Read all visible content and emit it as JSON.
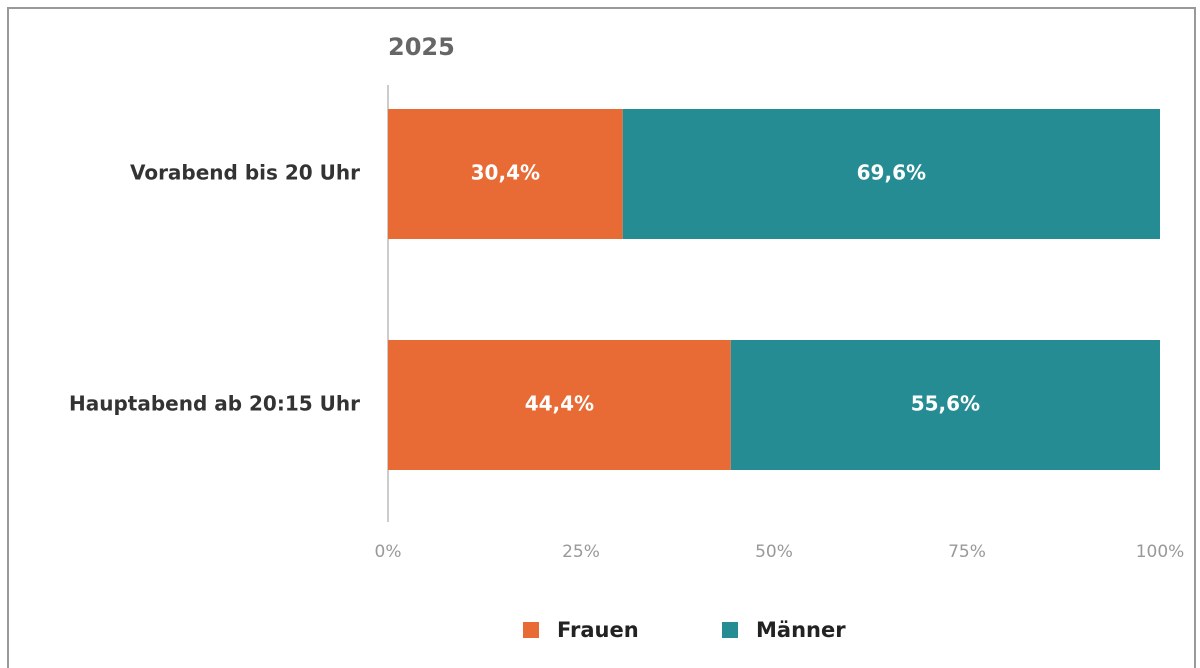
{
  "chart_data": {
    "type": "bar",
    "orientation": "horizontal",
    "stacked": true,
    "title": "2025",
    "categories": [
      "Vorabend bis 20 Uhr",
      "Hauptabend ab 20:15 Uhr"
    ],
    "series": [
      {
        "name": "Frauen",
        "color": "#e86a35",
        "values": [
          30.4,
          44.4
        ],
        "value_labels": [
          "30,4%",
          "44,4%"
        ]
      },
      {
        "name": "Männer",
        "color": "#268c93",
        "values": [
          69.6,
          55.6
        ],
        "value_labels": [
          "69,6%",
          "55,6%"
        ]
      }
    ],
    "xlim": [
      0,
      100
    ],
    "xticks": [
      {
        "value": 0,
        "label": "0%"
      },
      {
        "value": 25,
        "label": "25%"
      },
      {
        "value": 50,
        "label": "50%"
      },
      {
        "value": 75,
        "label": "75%"
      },
      {
        "value": 100,
        "label": "100%"
      }
    ],
    "legend": "bottom"
  }
}
